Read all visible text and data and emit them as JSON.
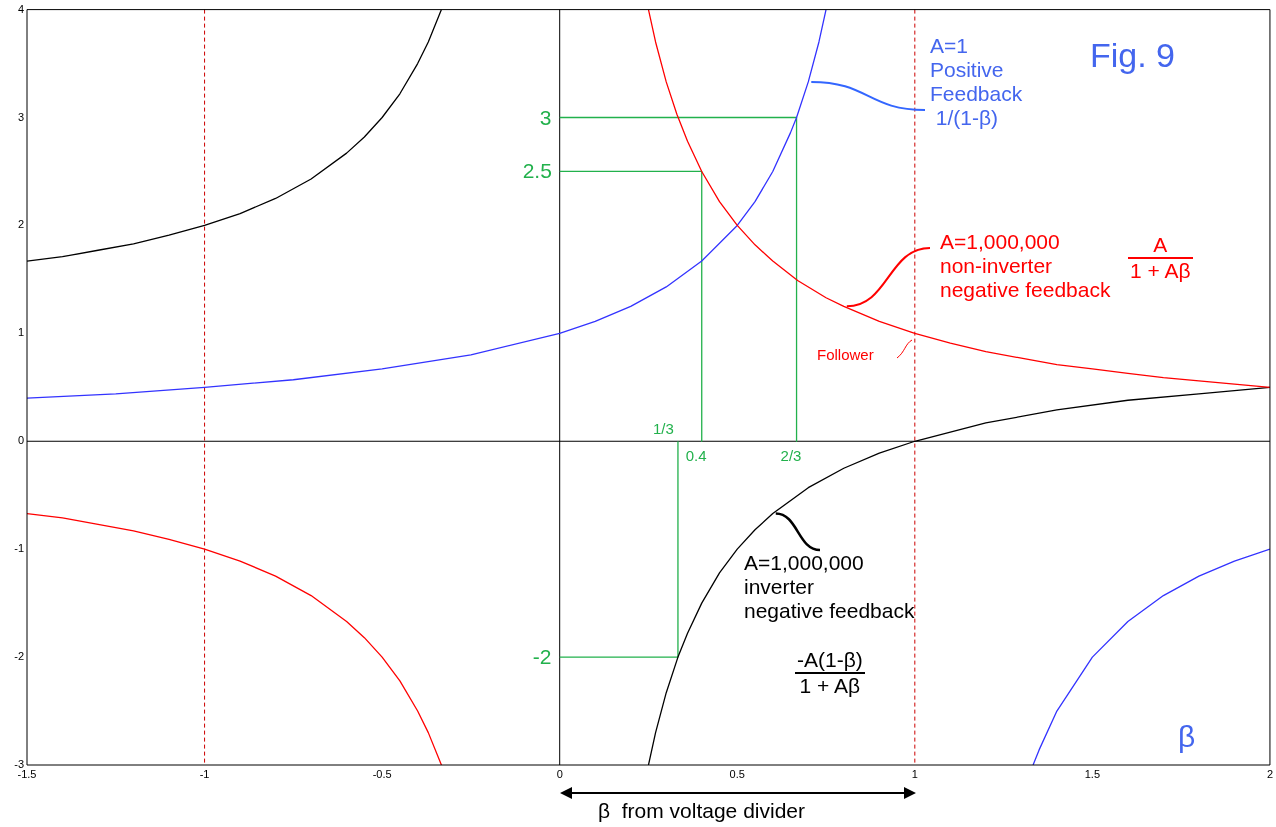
{
  "chart_data": {
    "type": "line",
    "legend": false,
    "marker": "none",
    "line_style": "solid",
    "xlim": [
      -1.5,
      2
    ],
    "xticks": [
      -1.5,
      -1,
      -0.5,
      0,
      0.5,
      1,
      1.5,
      2
    ],
    "ylim": [
      -3,
      4
    ],
    "yticks": [
      -3,
      -2,
      -1,
      0,
      1,
      2,
      3,
      4
    ],
    "series": [
      {
        "color": "#ff0000",
        "x": [
          0.25,
          0.27,
          0.3,
          0.33,
          0.36,
          0.4,
          0.45,
          0.5,
          0.55,
          0.6,
          0.67,
          0.75,
          0.8,
          0.9,
          1,
          1.1,
          1.2,
          1.3,
          1.4,
          1.5,
          1.6,
          1.7,
          1.8,
          1.9,
          2
        ],
        "values": [
          4,
          3.7,
          3.33,
          3.03,
          2.78,
          2.5,
          2.22,
          2,
          1.82,
          1.67,
          1.49,
          1.33,
          1.25,
          1.11,
          1,
          0.91,
          0.83,
          0.77,
          0.71,
          0.67,
          0.63,
          0.59,
          0.56,
          0.53,
          0.5
        ]
      },
      {
        "color": "#ff0000",
        "x": [
          -1.5,
          -1.4,
          -1.3,
          -1.2,
          -1.1,
          -1,
          -0.9,
          -0.8,
          -0.7,
          -0.6,
          -0.55,
          -0.5,
          -0.45,
          -0.4,
          -0.37,
          -0.333
        ],
        "values": [
          -0.67,
          -0.71,
          -0.77,
          -0.83,
          -0.91,
          -1,
          -1.11,
          -1.25,
          -1.43,
          -1.67,
          -1.82,
          -2,
          -2.22,
          -2.5,
          -2.7,
          -3
        ]
      },
      {
        "color": "#000000",
        "x": [
          -1.5,
          -1.4,
          -1.3,
          -1.2,
          -1.1,
          -1,
          -0.9,
          -0.8,
          -0.7,
          -0.6,
          -0.55,
          -0.5,
          -0.45,
          -0.4,
          -0.37,
          -0.333
        ],
        "values": [
          1.67,
          1.71,
          1.77,
          1.83,
          1.91,
          2,
          2.11,
          2.25,
          2.43,
          2.67,
          2.82,
          3,
          3.22,
          3.5,
          3.7,
          4
        ]
      },
      {
        "color": "#000000",
        "x": [
          0.25,
          0.27,
          0.3,
          0.333,
          0.36,
          0.4,
          0.45,
          0.5,
          0.55,
          0.6,
          0.7,
          0.8,
          0.9,
          1,
          1.2,
          1.4,
          1.6,
          1.8,
          2
        ],
        "values": [
          -3,
          -2.7,
          -2.33,
          -2,
          -1.78,
          -1.5,
          -1.22,
          -1,
          -0.82,
          -0.67,
          -0.43,
          -0.25,
          -0.11,
          0,
          0.17,
          0.29,
          0.38,
          0.44,
          0.5
        ]
      },
      {
        "color": "#3333ff",
        "x": [
          -1.5,
          -1.25,
          -1,
          -0.75,
          -0.5,
          -0.25,
          0,
          0.1,
          0.2,
          0.3,
          0.4,
          0.5,
          0.55,
          0.6,
          0.65,
          0.667,
          0.7,
          0.73,
          0.75
        ],
        "values": [
          0.4,
          0.44,
          0.5,
          0.57,
          0.67,
          0.8,
          1,
          1.11,
          1.25,
          1.43,
          1.67,
          2,
          2.22,
          2.5,
          2.86,
          3,
          3.33,
          3.7,
          4
        ]
      },
      {
        "color": "#3333ff",
        "x": [
          1.333,
          1.35,
          1.4,
          1.5,
          1.6,
          1.7,
          1.8,
          1.9,
          2
        ],
        "values": [
          -3,
          -2.86,
          -2.5,
          -2,
          -1.67,
          -1.43,
          -1.25,
          -1.11,
          -1
        ]
      },
      {
        "color": "#22b14c",
        "x": [
          0,
          0.667,
          0.667
        ],
        "values": [
          3,
          3,
          0
        ]
      },
      {
        "color": "#22b14c",
        "x": [
          0,
          0.4,
          0.4
        ],
        "values": [
          2.5,
          2.5,
          0
        ]
      },
      {
        "color": "#22b14c",
        "x": [
          0,
          0.333,
          0.333
        ],
        "values": [
          -2,
          -2,
          0
        ]
      }
    ],
    "ref_lines": [
      {
        "axis": "x",
        "value": 0,
        "color": "#000000",
        "line_style": "solid"
      },
      {
        "axis": "y",
        "value": 0,
        "color": "#000000",
        "line_style": "solid"
      },
      {
        "axis": "x",
        "value": -1,
        "color": "#cc0000",
        "line_style": "dashed"
      },
      {
        "axis": "x",
        "value": 1,
        "color": "#cc0000",
        "line_style": "dashed"
      }
    ],
    "annotations": [
      "Fig. 9",
      {
        "text": "A=1\nPositive\nFeedback\n 1/(1-β)",
        "x": 0.7,
        "y": 3.33
      },
      {
        "text": "A=1,000,000\nnon-inverter\nnegative feedback",
        "x": 0.8,
        "y": 1.25
      },
      "A\n1 + Aβ",
      "Follower",
      {
        "text": "A=1,000,000\ninverter\nnegative feedback",
        "x": 0.6,
        "y": -0.67
      },
      "-A(1-β)\n1 + Aβ",
      "β",
      "β  from voltage divider",
      {
        "text": "3",
        "x": 0,
        "y": 3
      },
      {
        "text": "2.5",
        "x": 0,
        "y": 2.5
      },
      {
        "text": "-2",
        "x": 0,
        "y": -2
      },
      {
        "text": "1/3",
        "x": 0.333,
        "y": 0
      },
      {
        "text": "0.4",
        "x": 0.4,
        "y": 0
      },
      {
        "text": "2/3",
        "x": 0.667,
        "y": 0
      }
    ]
  }
}
